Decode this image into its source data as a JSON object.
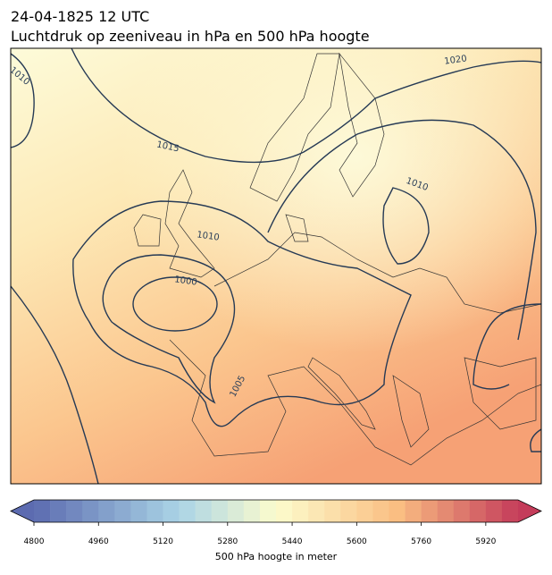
{
  "header": {
    "title": "24-04-1825 12 UTC",
    "subtitle": "Luchtdruk op zeeniveau in hPa en 500 hPa hoogte"
  },
  "contour_labels": [
    1010,
    1015,
    1020,
    1010,
    1010,
    1000,
    1005
  ],
  "colorbar": {
    "label": "500 hPa hoogte in meter",
    "lim": [
      4800,
      6000
    ],
    "step": 40,
    "ticks": [
      4800,
      4960,
      5120,
      5280,
      5440,
      5600,
      5760,
      5920
    ]
  }
}
